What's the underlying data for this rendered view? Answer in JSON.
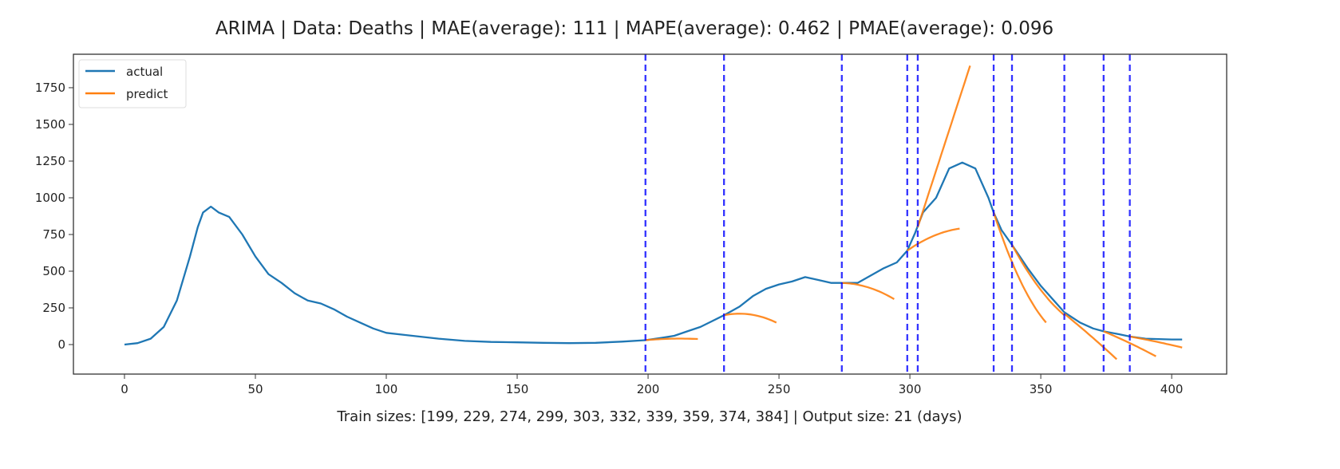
{
  "chart_data": {
    "type": "line",
    "title": "ARIMA | Data: Deaths | MAE(average): 111 | MAPE(average): 0.462 | PMAE(average): 0.096",
    "xlabel": "Train sizes: [199, 229, 274, 299, 303, 332, 339, 359, 374, 384] | Output size: 21 (days)",
    "ylabel": "",
    "xlim": [
      -19.5,
      421
    ],
    "ylim": [
      -201,
      1978
    ],
    "xticks": [
      0,
      50,
      100,
      150,
      200,
      250,
      300,
      350,
      400
    ],
    "yticks": [
      0,
      250,
      500,
      750,
      1000,
      1250,
      1500,
      1750
    ],
    "grid": false,
    "legend": {
      "placement": "top-left",
      "entries": [
        "actual",
        "predict"
      ]
    },
    "colors": {
      "actual": "#1f77b4",
      "predict": "#ff7f0e",
      "train_split": "#0000ff"
    },
    "train_sizes": [
      199,
      229,
      274,
      299,
      303,
      332,
      339,
      359,
      374,
      384
    ],
    "output_size": 21,
    "series": [
      {
        "name": "actual",
        "points": [
          [
            0,
            0
          ],
          [
            5,
            10
          ],
          [
            10,
            40
          ],
          [
            15,
            120
          ],
          [
            20,
            300
          ],
          [
            25,
            600
          ],
          [
            28,
            800
          ],
          [
            30,
            900
          ],
          [
            33,
            940
          ],
          [
            36,
            900
          ],
          [
            40,
            870
          ],
          [
            45,
            750
          ],
          [
            50,
            600
          ],
          [
            55,
            480
          ],
          [
            60,
            420
          ],
          [
            65,
            350
          ],
          [
            70,
            300
          ],
          [
            75,
            280
          ],
          [
            80,
            240
          ],
          [
            85,
            190
          ],
          [
            90,
            150
          ],
          [
            95,
            110
          ],
          [
            100,
            80
          ],
          [
            110,
            60
          ],
          [
            120,
            40
          ],
          [
            130,
            25
          ],
          [
            140,
            18
          ],
          [
            150,
            15
          ],
          [
            160,
            12
          ],
          [
            170,
            10
          ],
          [
            180,
            12
          ],
          [
            190,
            20
          ],
          [
            199,
            30
          ],
          [
            205,
            45
          ],
          [
            210,
            60
          ],
          [
            215,
            90
          ],
          [
            220,
            120
          ],
          [
            229,
            200
          ],
          [
            235,
            260
          ],
          [
            240,
            330
          ],
          [
            245,
            380
          ],
          [
            250,
            410
          ],
          [
            255,
            430
          ],
          [
            260,
            460
          ],
          [
            265,
            440
          ],
          [
            270,
            420
          ],
          [
            274,
            420
          ],
          [
            280,
            420
          ],
          [
            285,
            470
          ],
          [
            290,
            520
          ],
          [
            295,
            560
          ],
          [
            299,
            640
          ],
          [
            302,
            760
          ],
          [
            305,
            900
          ],
          [
            310,
            1000
          ],
          [
            315,
            1200
          ],
          [
            320,
            1240
          ],
          [
            325,
            1200
          ],
          [
            330,
            1000
          ],
          [
            332,
            900
          ],
          [
            335,
            780
          ],
          [
            339,
            680
          ],
          [
            345,
            520
          ],
          [
            350,
            400
          ],
          [
            355,
            300
          ],
          [
            359,
            220
          ],
          [
            365,
            150
          ],
          [
            370,
            110
          ],
          [
            374,
            90
          ],
          [
            380,
            70
          ],
          [
            384,
            55
          ],
          [
            390,
            40
          ],
          [
            400,
            35
          ],
          [
            404,
            35
          ]
        ]
      },
      {
        "name": "predict",
        "segments": [
          [
            [
              199,
              30
            ],
            [
              209,
              40
            ],
            [
              219,
              38
            ]
          ],
          [
            [
              229,
              200
            ],
            [
              236,
              210
            ],
            [
              249,
              150
            ]
          ],
          [
            [
              274,
              420
            ],
            [
              284,
              390
            ],
            [
              294,
              310
            ]
          ],
          [
            [
              299,
              640
            ],
            [
              309,
              740
            ],
            [
              319,
              790
            ]
          ],
          [
            [
              303,
              800
            ],
            [
              313,
              1350
            ],
            [
              323,
              1900
            ]
          ],
          [
            [
              332,
              900
            ],
            [
              340,
              520
            ],
            [
              352,
              150
            ]
          ],
          [
            [
              339,
              680
            ],
            [
              348,
              420
            ],
            [
              359,
              200
            ]
          ],
          [
            [
              359,
              210
            ],
            [
              369,
              60
            ],
            [
              379,
              -100
            ]
          ],
          [
            [
              374,
              90
            ],
            [
              384,
              10
            ],
            [
              394,
              -80
            ]
          ],
          [
            [
              384,
              55
            ],
            [
              394,
              20
            ],
            [
              404,
              -20
            ]
          ]
        ]
      }
    ]
  }
}
